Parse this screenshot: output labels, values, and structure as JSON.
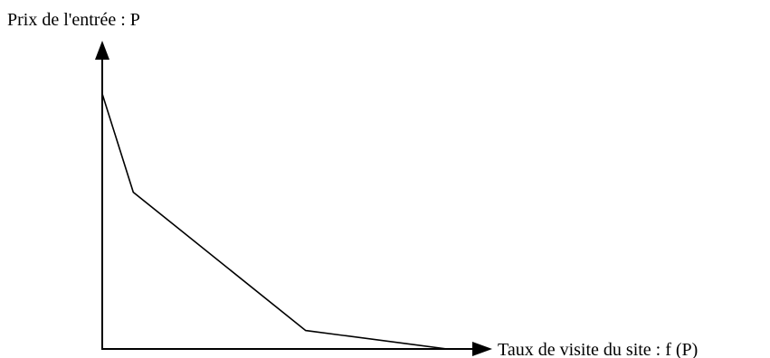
{
  "chart_data": {
    "type": "line",
    "ylabel": "Prix de l'entrée : P",
    "xlabel": "Taux de visite du site : f (P)",
    "xlim": [
      0,
      100
    ],
    "ylim": [
      0,
      100
    ],
    "grid": false,
    "legend": "none",
    "series": [
      {
        "x": [
          0,
          9,
          59,
          100
        ],
        "y": [
          83,
          51,
          6,
          0
        ]
      }
    ],
    "colors": {
      "axis": "#000000",
      "line": "#000000"
    }
  }
}
